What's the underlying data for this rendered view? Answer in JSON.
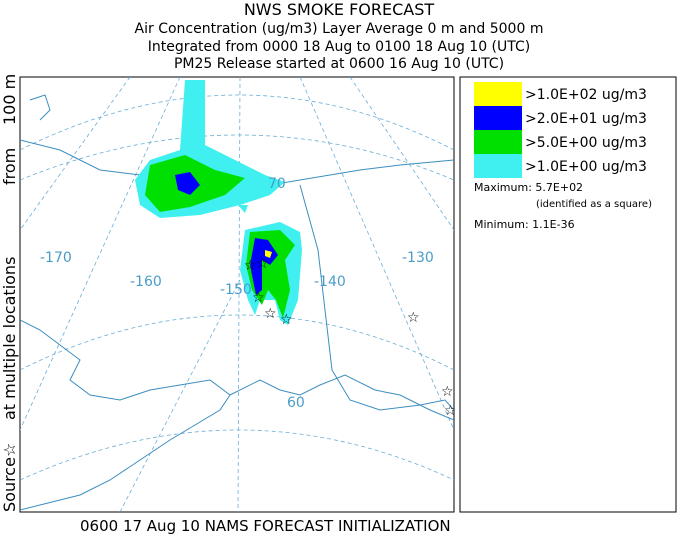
{
  "header": {
    "title": "NWS SMOKE FORECAST",
    "lines": [
      "Air Concentration (ug/m3) Layer Average    0 m and  5000 m",
      "Integrated from 0000 18 Aug to 0100 18 Aug 10 (UTC)",
      "PM25 Release started at 0600 16 Aug 10 (UTC)"
    ]
  },
  "side_label": [
    "Source☆",
    "at multiple locations",
    "from",
    "100 m"
  ],
  "map": {
    "labels": [
      "-170",
      "-160",
      "-150",
      "-140",
      "-130",
      "70",
      "60"
    ]
  },
  "legend": {
    "items": [
      {
        "label": ">1.0E+02 ug/m3",
        "color": "#ffff00"
      },
      {
        "label": ">2.0E+01 ug/m3",
        "color": "#0000ff"
      },
      {
        "label": ">5.0E+00 ug/m3",
        "color": "#00e000"
      },
      {
        "label": ">1.0E+00 ug/m3",
        "color": "#40f0f0"
      }
    ],
    "maximum": "Maximum: 5.7E+02",
    "maximum_note": "(identified as a square)",
    "minimum": "Minimum: 1.1E-36"
  },
  "footer": "0600 17 Aug 10 NAMS FORECAST INITIALIZATION"
}
